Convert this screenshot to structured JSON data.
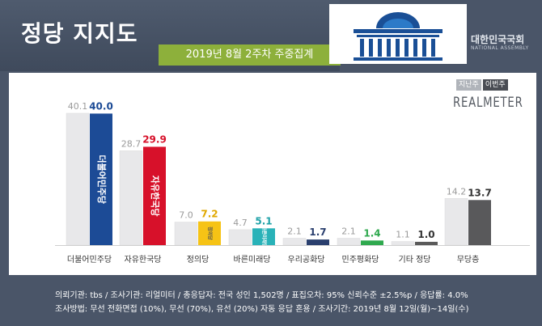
{
  "header": {
    "title": "정당 지지도",
    "subtitle": "2019년 8월 2주차 주중집계",
    "assembly_name": "대한민국국회",
    "assembly_name_en": "NATIONAL ASSEMBLY"
  },
  "legend": {
    "prev": "지난주",
    "curr": "이번주"
  },
  "brand": "REALMETER",
  "chart_data": {
    "type": "bar",
    "categories": [
      "더불어민주당",
      "자유한국당",
      "정의당",
      "바른미래당",
      "우리공화당",
      "민주평화당",
      "기타 정당",
      "무당층"
    ],
    "series": [
      {
        "name": "지난주",
        "values": [
          40.1,
          28.7,
          7.0,
          4.7,
          2.1,
          2.1,
          1.1,
          14.2
        ]
      },
      {
        "name": "이번주",
        "values": [
          40.0,
          29.9,
          7.2,
          5.1,
          1.7,
          1.4,
          1.0,
          13.7
        ]
      }
    ],
    "ylim": [
      0,
      40.1
    ],
    "colors": {
      "prev": "#e8e8ea",
      "curr": [
        "#1c4b96",
        "#d7112a",
        "#f6c315",
        "#29b2b8",
        "#2a3f6e",
        "#2fa94e",
        "#5a5a5a",
        "#59595b"
      ],
      "curr_label": [
        "#1c4b96",
        "#d7112a",
        "#e0a800",
        "#1fa2a8",
        "#2a3f6e",
        "#2fa94e",
        "#333333",
        "#333333"
      ],
      "prev_label": "#9a9a9a"
    },
    "bar_inner_labels": [
      "더불어민주당",
      "자유한국당",
      "정의당",
      "바른미래당",
      "",
      "",
      "",
      ""
    ]
  },
  "footer": {
    "line1": "의뢰기관: tbs / 조사기관: 리얼미터 / 총응답자: 전국 성인 1,502명 / 표집오차: 95% 신뢰수준 ±2.5%p / 응답률: 4.0%",
    "line2": "조사방법: 무선 전화면접 (10%), 무선 (70%), 유선 (20%) 자동 응답 혼용 / 조사기간: 2019년 8월 12일(월)~14일(수)"
  }
}
